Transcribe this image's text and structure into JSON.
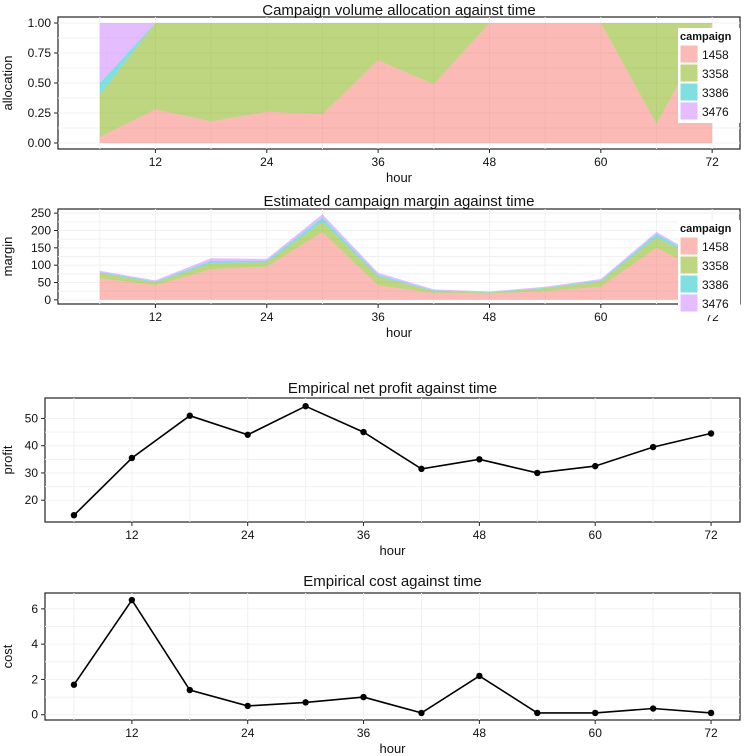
{
  "chart_data": [
    {
      "type": "area",
      "stacked": true,
      "title": "Campaign volume allocation against time",
      "xlabel": "hour",
      "ylabel": "allocation",
      "x": [
        6,
        12,
        18,
        24,
        30,
        36,
        42,
        48,
        54,
        60,
        66,
        72
      ],
      "x_ticks": [
        12,
        24,
        36,
        48,
        60,
        72
      ],
      "y_ticks": [
        "0.00",
        "0.25",
        "0.50",
        "0.75",
        "1.00"
      ],
      "y_tick_values": [
        0,
        0.25,
        0.5,
        0.75,
        1.0
      ],
      "xlim": [
        1.5,
        75
      ],
      "ylim": [
        -0.05,
        1.05
      ],
      "legend": {
        "title": "campaign",
        "position": "right-inside"
      },
      "series": [
        {
          "name": "1458",
          "color": "#F8766D",
          "values": [
            0.05,
            0.28,
            0.18,
            0.26,
            0.24,
            0.69,
            0.49,
            1.0,
            1.0,
            1.0,
            0.16,
            1.0
          ]
        },
        {
          "name": "3358",
          "color": "#7CAE00",
          "values": [
            0.35,
            0.72,
            0.82,
            0.74,
            0.76,
            0.31,
            0.51,
            0.0,
            0.0,
            0.0,
            0.84,
            0.0
          ]
        },
        {
          "name": "3386",
          "color": "#00BFC4",
          "values": [
            0.1,
            0.0,
            0.0,
            0.0,
            0.0,
            0.0,
            0.0,
            0.0,
            0.0,
            0.0,
            0.0,
            0.0
          ]
        },
        {
          "name": "3476",
          "color": "#C77CFF",
          "values": [
            0.5,
            0.0,
            0.0,
            0.0,
            0.0,
            0.0,
            0.0,
            0.0,
            0.0,
            0.0,
            0.0,
            0.0
          ]
        }
      ]
    },
    {
      "type": "area",
      "stacked": true,
      "title": "Estimated campaign margin against time",
      "xlabel": "hour",
      "ylabel": "margin",
      "x": [
        6,
        12,
        18,
        24,
        30,
        36,
        42,
        48,
        54,
        60,
        66,
        72
      ],
      "x_ticks": [
        12,
        24,
        36,
        48,
        60,
        72
      ],
      "y_ticks": [
        "0",
        "50",
        "100",
        "150",
        "200",
        "250"
      ],
      "y_tick_values": [
        0,
        50,
        100,
        150,
        200,
        250
      ],
      "xlim": [
        1.5,
        75
      ],
      "ylim": [
        -12,
        262
      ],
      "legend": {
        "title": "campaign",
        "position": "right-inside"
      },
      "series": [
        {
          "name": "1458",
          "color": "#F8766D",
          "values": [
            62,
            42,
            88,
            96,
            195,
            42,
            20,
            18,
            25,
            38,
            150,
            68
          ]
        },
        {
          "name": "3358",
          "color": "#7CAE00",
          "values": [
            15,
            8,
            18,
            12,
            30,
            25,
            5,
            3,
            8,
            15,
            30,
            28
          ]
        },
        {
          "name": "3386",
          "color": "#00BFC4",
          "values": [
            3,
            3,
            6,
            5,
            12,
            5,
            2,
            1,
            2,
            3,
            10,
            3
          ]
        },
        {
          "name": "3476",
          "color": "#C77CFF",
          "values": [
            4,
            3,
            8,
            5,
            10,
            6,
            3,
            2,
            3,
            4,
            6,
            4
          ]
        }
      ]
    },
    {
      "type": "line",
      "title": "Empirical net profit against time",
      "xlabel": "hour",
      "ylabel": "profit",
      "x": [
        6,
        12,
        18,
        24,
        30,
        36,
        42,
        48,
        54,
        60,
        66,
        72
      ],
      "values": [
        14.5,
        35.5,
        51,
        44,
        54.5,
        45,
        31.5,
        35,
        30,
        32.5,
        39.5,
        44.5
      ],
      "x_ticks": [
        12,
        24,
        36,
        48,
        60,
        72
      ],
      "y_ticks": [
        "20",
        "30",
        "40",
        "50"
      ],
      "y_tick_values": [
        20,
        30,
        40,
        50
      ],
      "xlim": [
        3,
        75
      ],
      "ylim": [
        12,
        57.5
      ]
    },
    {
      "type": "line",
      "title": "Empirical cost against time",
      "xlabel": "hour",
      "ylabel": "cost",
      "x": [
        6,
        12,
        18,
        24,
        30,
        36,
        42,
        48,
        54,
        60,
        66,
        72
      ],
      "values": [
        1.7,
        6.5,
        1.4,
        0.5,
        0.7,
        1.0,
        0.1,
        2.2,
        0.1,
        0.1,
        0.35,
        0.1
      ],
      "x_ticks": [
        12,
        24,
        36,
        48,
        60,
        72
      ],
      "y_ticks": [
        "0",
        "2",
        "4",
        "6"
      ],
      "y_tick_values": [
        0,
        2,
        4,
        6
      ],
      "xlim": [
        3,
        75
      ],
      "ylim": [
        -0.3,
        6.9
      ]
    }
  ]
}
